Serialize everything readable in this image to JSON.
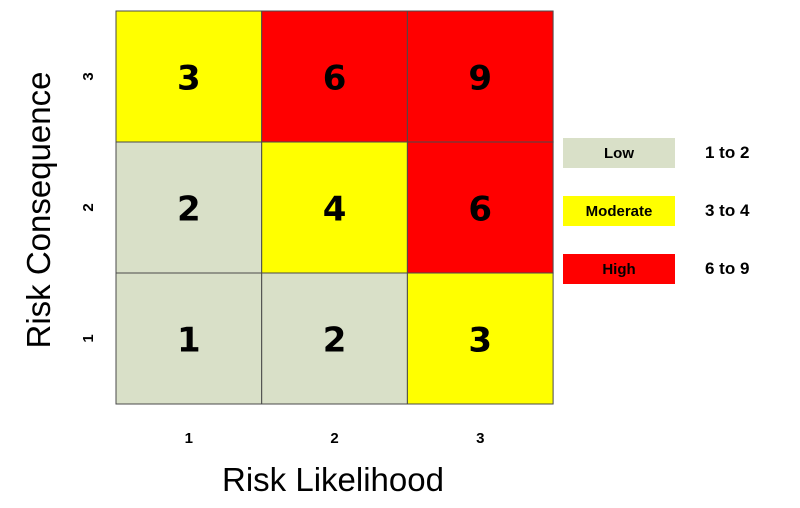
{
  "chart_data": {
    "type": "heatmap",
    "title": "",
    "xlabel": "Risk Likelihood",
    "ylabel": "Risk Consequence",
    "x_categories": [
      "1",
      "2",
      "3"
    ],
    "y_categories": [
      "1",
      "2",
      "3"
    ],
    "cells": [
      {
        "x": "1",
        "y": "1",
        "value": 1,
        "level": "low"
      },
      {
        "x": "2",
        "y": "1",
        "value": 2,
        "level": "low"
      },
      {
        "x": "3",
        "y": "1",
        "value": 3,
        "level": "moderate"
      },
      {
        "x": "1",
        "y": "2",
        "value": 2,
        "level": "low"
      },
      {
        "x": "2",
        "y": "2",
        "value": 4,
        "level": "moderate"
      },
      {
        "x": "3",
        "y": "2",
        "value": 6,
        "level": "high"
      },
      {
        "x": "1",
        "y": "3",
        "value": 3,
        "level": "moderate"
      },
      {
        "x": "2",
        "y": "3",
        "value": 6,
        "level": "high"
      },
      {
        "x": "3",
        "y": "3",
        "value": 9,
        "level": "high"
      }
    ],
    "legend": [
      {
        "key": "low",
        "label": "Low",
        "range": "1 to 2",
        "color": "#d9e0c8"
      },
      {
        "key": "moderate",
        "label": "Moderate",
        "range": "3 to 4",
        "color": "#ffff00"
      },
      {
        "key": "high",
        "label": "High",
        "range": "6 to 9",
        "color": "#ff0000"
      }
    ],
    "legend_placement": "right",
    "grid": true
  }
}
